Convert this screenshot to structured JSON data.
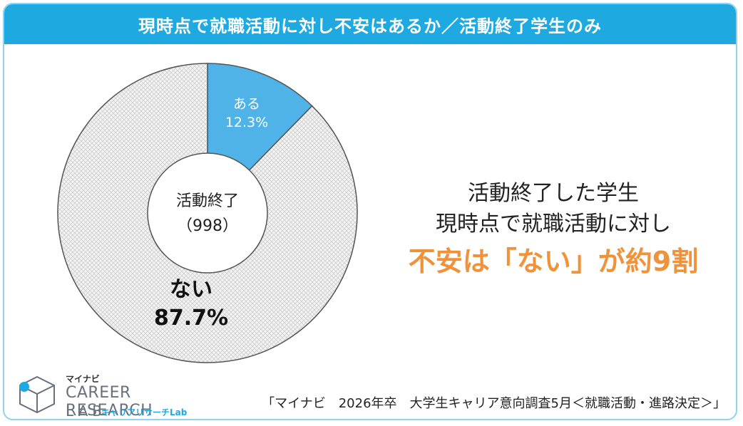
{
  "title": "現時点で就職活動に対し不安はあるか／活動終了学生のみ",
  "chart_data": {
    "type": "pie",
    "title": "現時点で就職活動に対し不安はあるか／活動終了学生のみ",
    "center_label": [
      "活動終了",
      "（998）"
    ],
    "slices": [
      {
        "label": "ある",
        "value": 12.3,
        "value_text": "12.3%",
        "color": "#4fb3e8"
      },
      {
        "label": "ない",
        "value": 87.7,
        "value_text": "87.7%",
        "color": "#e9e9e9"
      }
    ]
  },
  "headline": {
    "line1": "活動終了した学生",
    "line2": "現時点で就職活動に対し",
    "line3": "不安は「ない」が約9割"
  },
  "source": "「マイナビ　2026年卒　大学生キャリア意向調査5月＜就職活動・進路決定＞」",
  "logo": {
    "top": "マイナビ",
    "line1": "CAREER RESEARCH",
    "line2": "LAB",
    "sub": "キャリアリサーチLab"
  },
  "colors": {
    "title_bg": "#1fa9e1",
    "accent": "#f0923a",
    "frame": "#8fd3ee"
  }
}
